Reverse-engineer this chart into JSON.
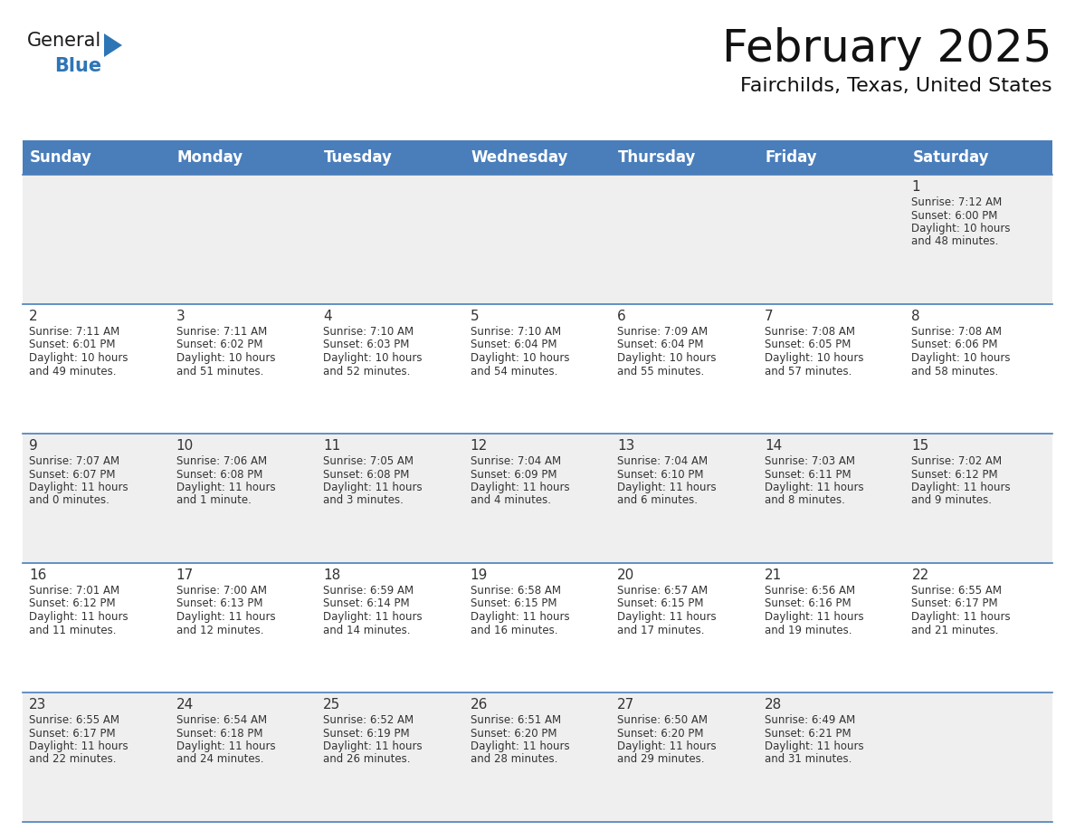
{
  "title": "February 2025",
  "subtitle": "Fairchilds, Texas, United States",
  "header_color": "#4A7EBB",
  "header_text_color": "#FFFFFF",
  "day_names": [
    "Sunday",
    "Monday",
    "Tuesday",
    "Wednesday",
    "Thursday",
    "Friday",
    "Saturday"
  ],
  "cell_bg_even": "#EFEFEF",
  "cell_bg_odd": "#FFFFFF",
  "row_border_color": "#4A7EBB",
  "text_color": "#333333",
  "logo_black": "#1a1a1a",
  "logo_blue_color": "#2E75B6",
  "title_fontsize": 36,
  "subtitle_fontsize": 16,
  "header_fontsize": 12,
  "date_fontsize": 11,
  "cell_fontsize": 8.5,
  "days": [
    {
      "date": 1,
      "row": 0,
      "col": 6,
      "sunrise": "7:12 AM",
      "sunset": "6:00 PM",
      "daylight_hours": 10,
      "daylight_minutes": 48
    },
    {
      "date": 2,
      "row": 1,
      "col": 0,
      "sunrise": "7:11 AM",
      "sunset": "6:01 PM",
      "daylight_hours": 10,
      "daylight_minutes": 49
    },
    {
      "date": 3,
      "row": 1,
      "col": 1,
      "sunrise": "7:11 AM",
      "sunset": "6:02 PM",
      "daylight_hours": 10,
      "daylight_minutes": 51
    },
    {
      "date": 4,
      "row": 1,
      "col": 2,
      "sunrise": "7:10 AM",
      "sunset": "6:03 PM",
      "daylight_hours": 10,
      "daylight_minutes": 52
    },
    {
      "date": 5,
      "row": 1,
      "col": 3,
      "sunrise": "7:10 AM",
      "sunset": "6:04 PM",
      "daylight_hours": 10,
      "daylight_minutes": 54
    },
    {
      "date": 6,
      "row": 1,
      "col": 4,
      "sunrise": "7:09 AM",
      "sunset": "6:04 PM",
      "daylight_hours": 10,
      "daylight_minutes": 55
    },
    {
      "date": 7,
      "row": 1,
      "col": 5,
      "sunrise": "7:08 AM",
      "sunset": "6:05 PM",
      "daylight_hours": 10,
      "daylight_minutes": 57
    },
    {
      "date": 8,
      "row": 1,
      "col": 6,
      "sunrise": "7:08 AM",
      "sunset": "6:06 PM",
      "daylight_hours": 10,
      "daylight_minutes": 58
    },
    {
      "date": 9,
      "row": 2,
      "col": 0,
      "sunrise": "7:07 AM",
      "sunset": "6:07 PM",
      "daylight_hours": 11,
      "daylight_minutes": 0
    },
    {
      "date": 10,
      "row": 2,
      "col": 1,
      "sunrise": "7:06 AM",
      "sunset": "6:08 PM",
      "daylight_hours": 11,
      "daylight_minutes": 1
    },
    {
      "date": 11,
      "row": 2,
      "col": 2,
      "sunrise": "7:05 AM",
      "sunset": "6:08 PM",
      "daylight_hours": 11,
      "daylight_minutes": 3
    },
    {
      "date": 12,
      "row": 2,
      "col": 3,
      "sunrise": "7:04 AM",
      "sunset": "6:09 PM",
      "daylight_hours": 11,
      "daylight_minutes": 4
    },
    {
      "date": 13,
      "row": 2,
      "col": 4,
      "sunrise": "7:04 AM",
      "sunset": "6:10 PM",
      "daylight_hours": 11,
      "daylight_minutes": 6
    },
    {
      "date": 14,
      "row": 2,
      "col": 5,
      "sunrise": "7:03 AM",
      "sunset": "6:11 PM",
      "daylight_hours": 11,
      "daylight_minutes": 8
    },
    {
      "date": 15,
      "row": 2,
      "col": 6,
      "sunrise": "7:02 AM",
      "sunset": "6:12 PM",
      "daylight_hours": 11,
      "daylight_minutes": 9
    },
    {
      "date": 16,
      "row": 3,
      "col": 0,
      "sunrise": "7:01 AM",
      "sunset": "6:12 PM",
      "daylight_hours": 11,
      "daylight_minutes": 11
    },
    {
      "date": 17,
      "row": 3,
      "col": 1,
      "sunrise": "7:00 AM",
      "sunset": "6:13 PM",
      "daylight_hours": 11,
      "daylight_minutes": 12
    },
    {
      "date": 18,
      "row": 3,
      "col": 2,
      "sunrise": "6:59 AM",
      "sunset": "6:14 PM",
      "daylight_hours": 11,
      "daylight_minutes": 14
    },
    {
      "date": 19,
      "row": 3,
      "col": 3,
      "sunrise": "6:58 AM",
      "sunset": "6:15 PM",
      "daylight_hours": 11,
      "daylight_minutes": 16
    },
    {
      "date": 20,
      "row": 3,
      "col": 4,
      "sunrise": "6:57 AM",
      "sunset": "6:15 PM",
      "daylight_hours": 11,
      "daylight_minutes": 17
    },
    {
      "date": 21,
      "row": 3,
      "col": 5,
      "sunrise": "6:56 AM",
      "sunset": "6:16 PM",
      "daylight_hours": 11,
      "daylight_minutes": 19
    },
    {
      "date": 22,
      "row": 3,
      "col": 6,
      "sunrise": "6:55 AM",
      "sunset": "6:17 PM",
      "daylight_hours": 11,
      "daylight_minutes": 21
    },
    {
      "date": 23,
      "row": 4,
      "col": 0,
      "sunrise": "6:55 AM",
      "sunset": "6:17 PM",
      "daylight_hours": 11,
      "daylight_minutes": 22
    },
    {
      "date": 24,
      "row": 4,
      "col": 1,
      "sunrise": "6:54 AM",
      "sunset": "6:18 PM",
      "daylight_hours": 11,
      "daylight_minutes": 24
    },
    {
      "date": 25,
      "row": 4,
      "col": 2,
      "sunrise": "6:52 AM",
      "sunset": "6:19 PM",
      "daylight_hours": 11,
      "daylight_minutes": 26
    },
    {
      "date": 26,
      "row": 4,
      "col": 3,
      "sunrise": "6:51 AM",
      "sunset": "6:20 PM",
      "daylight_hours": 11,
      "daylight_minutes": 28
    },
    {
      "date": 27,
      "row": 4,
      "col": 4,
      "sunrise": "6:50 AM",
      "sunset": "6:20 PM",
      "daylight_hours": 11,
      "daylight_minutes": 29
    },
    {
      "date": 28,
      "row": 4,
      "col": 5,
      "sunrise": "6:49 AM",
      "sunset": "6:21 PM",
      "daylight_hours": 11,
      "daylight_minutes": 31
    }
  ]
}
